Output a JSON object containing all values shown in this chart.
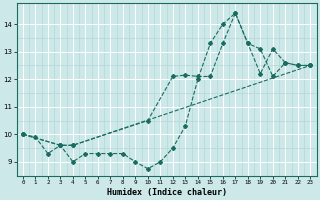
{
  "title": "",
  "xlabel": "Humidex (Indice chaleur)",
  "bg_color": "#cce8e8",
  "line_color": "#1a6b60",
  "grid_major_color": "#ffffff",
  "grid_minor_color": "#b0d4d4",
  "xlim": [
    -0.5,
    23.5
  ],
  "ylim": [
    8.5,
    14.75
  ],
  "yticks": [
    9,
    10,
    11,
    12,
    13,
    14
  ],
  "xticks": [
    0,
    1,
    2,
    3,
    4,
    5,
    6,
    7,
    8,
    9,
    10,
    11,
    12,
    13,
    14,
    15,
    16,
    17,
    18,
    19,
    20,
    21,
    22,
    23
  ],
  "line1_x": [
    0,
    1,
    2,
    3,
    4,
    5,
    6,
    7,
    8,
    9,
    10,
    11,
    12,
    13,
    14,
    15,
    16,
    17,
    18,
    19,
    20,
    21,
    22,
    23
  ],
  "line1_y": [
    10.0,
    9.9,
    9.3,
    9.6,
    9.0,
    9.3,
    9.3,
    9.3,
    9.3,
    9.0,
    8.75,
    9.0,
    9.5,
    10.3,
    12.0,
    13.3,
    14.0,
    14.4,
    13.3,
    13.1,
    12.1,
    12.6,
    12.5,
    12.5
  ],
  "line2_x": [
    0,
    3,
    4,
    10,
    12,
    13,
    14,
    15,
    16,
    17,
    18,
    19,
    20,
    21,
    22,
    23
  ],
  "line2_y": [
    10.0,
    9.6,
    9.6,
    10.5,
    12.1,
    12.15,
    12.1,
    12.1,
    13.3,
    14.4,
    13.3,
    12.2,
    13.1,
    12.6,
    12.5,
    12.5
  ],
  "line3_x": [
    0,
    3,
    4,
    23
  ],
  "line3_y": [
    10.0,
    9.6,
    9.6,
    12.5
  ],
  "marker_size": 2.0,
  "line_width": 0.8
}
